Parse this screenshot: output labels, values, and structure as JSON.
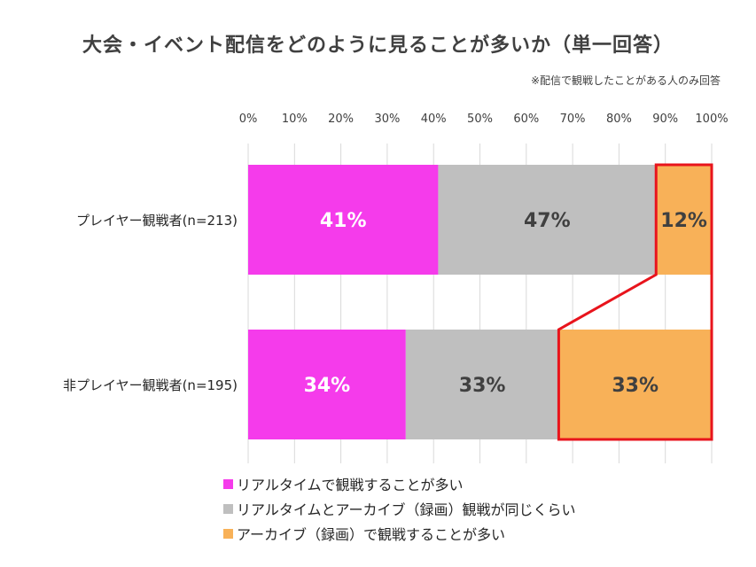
{
  "title": "大会・イベント配信をどのように見ることが多いか（単一回答）",
  "note": "※配信で観戦したことがある人のみ回答",
  "chart_data": {
    "type": "bar",
    "orientation": "horizontal",
    "stacked": true,
    "categories": [
      "プレイヤー観戦者(n=213)",
      "非プレイヤー観戦者(n=195)"
    ],
    "series": [
      {
        "name": "リアルタイムで観戦することが多い",
        "color": "#F53BEB",
        "values": [
          41,
          34
        ],
        "labels": [
          "41%",
          "34%"
        ]
      },
      {
        "name": "リアルタイムとアーカイブ（録画）観戦が同じくらい",
        "color": "#BFBFBF",
        "values": [
          47,
          33
        ],
        "labels": [
          "47%",
          "33%"
        ]
      },
      {
        "name": "アーカイブ（録画）で観戦することが多い",
        "color": "#F8B158",
        "values": [
          12,
          33
        ],
        "labels": [
          "12%",
          "33%"
        ]
      }
    ],
    "xlim": [
      0,
      100
    ],
    "xticks": [
      "0%",
      "10%",
      "20%",
      "30%",
      "40%",
      "50%",
      "60%",
      "70%",
      "80%",
      "90%",
      "100%"
    ],
    "grid": true,
    "legend": "bottom",
    "highlight_color": "#E8141C"
  }
}
